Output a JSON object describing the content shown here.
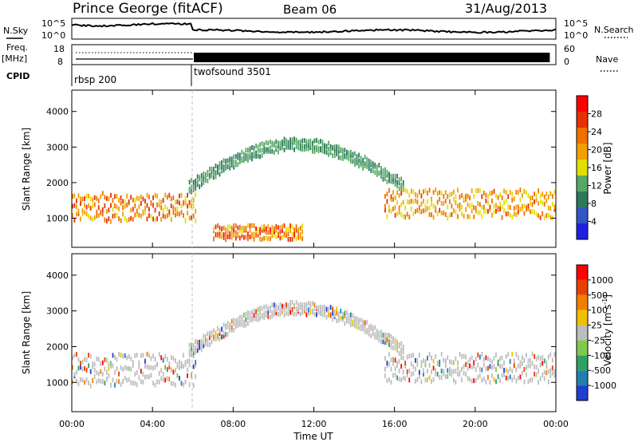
{
  "header": {
    "title": "Prince George (fitACF)",
    "beam": "Beam 06",
    "date": "31/Aug/2013"
  },
  "status_panel": {
    "left_top": "N.Sky",
    "left_bottom_label": "Freq.",
    "left_bottom_unit": "[MHz]",
    "cpid_label": "CPID",
    "right_top": "N.Search",
    "right_bottom": "Nave",
    "nsky_ticks": [
      "10^5",
      "10^0"
    ],
    "freq_ticks": [
      "18",
      "8"
    ],
    "nave_ticks": [
      "60",
      "0"
    ],
    "nsearch_ticks": [
      "10^5",
      "10^0"
    ],
    "cpid_segments": [
      {
        "label": "rbsp 200",
        "start_hour": 0,
        "end_hour": 6.0
      },
      {
        "label": "twofsound 3501",
        "start_hour": 6.0,
        "end_hour": 24
      }
    ]
  },
  "chart_data": [
    {
      "type": "heatmap",
      "quantity": "Power",
      "ylabel": "Slant Range [km]",
      "ylim": [
        180,
        4600
      ],
      "yticks": [
        1000,
        2000,
        3000,
        4000
      ],
      "xlim": [
        0,
        24
      ],
      "xticks": [
        "00:00",
        "04:00",
        "08:00",
        "12:00",
        "16:00",
        "20:00",
        "00:00"
      ],
      "colorbar": {
        "label": "Power [dB]",
        "range": [
          0,
          32
        ],
        "ticks": [
          "4",
          "8",
          "12",
          "16",
          "20",
          "24",
          "28"
        ],
        "colors": [
          "#1f1fe0",
          "#3056c8",
          "#2c7a5a",
          "#56a866",
          "#e0e000",
          "#f0a000",
          "#f07000",
          "#e83000",
          "#ff0000"
        ]
      },
      "echo_bands": [
        {
          "name": "near-range ground scatter",
          "start_hour": 0.0,
          "end_hour": 6.2,
          "range_min_km": 900,
          "range_max_km": 1700,
          "peak_db": 28
        },
        {
          "name": "daytime arc",
          "start_hour": 5.8,
          "end_hour": 16.5,
          "range_min_km": 1700,
          "range_max_km": 3450,
          "peak_db": 14
        },
        {
          "name": "morning low band",
          "start_hour": 7.0,
          "end_hour": 11.5,
          "range_min_km": 400,
          "range_max_km": 800,
          "peak_db": 30
        },
        {
          "name": "evening band",
          "start_hour": 15.5,
          "end_hour": 24.0,
          "range_min_km": 1000,
          "range_max_km": 1800,
          "peak_db": 26
        }
      ]
    },
    {
      "type": "heatmap",
      "quantity": "Velocity",
      "ylabel": "Slant Range [km]",
      "ylim": [
        180,
        4600
      ],
      "yticks": [
        1000,
        2000,
        3000,
        4000
      ],
      "xlim": [
        0,
        24
      ],
      "xlabel": "Time UT",
      "xticks": [
        "00:00",
        "04:00",
        "08:00",
        "12:00",
        "16:00",
        "20:00",
        "00:00"
      ],
      "colorbar": {
        "label": "Velocity [m s^-1]",
        "ticks": [
          "1000",
          "500",
          "100",
          "25",
          "-25",
          "-100",
          "-500",
          "-1000"
        ],
        "colors": [
          "#1f3fd0",
          "#2080b0",
          "#2fa060",
          "#80c850",
          "#bdbdbd",
          "#f0c000",
          "#f08000",
          "#e84000",
          "#ff0000"
        ]
      },
      "echo_bands": [
        {
          "name": "near-range",
          "start_hour": 0.0,
          "end_hour": 6.2,
          "range_min_km": 900,
          "range_max_km": 1800,
          "dominant": "ground scatter"
        },
        {
          "name": "daytime arc",
          "start_hour": 5.8,
          "end_hour": 16.5,
          "range_min_km": 1700,
          "range_max_km": 3450,
          "dominant": "ground scatter"
        },
        {
          "name": "evening band",
          "start_hour": 15.5,
          "end_hour": 24.0,
          "range_min_km": 1000,
          "range_max_km": 1800,
          "dominant": "ground scatter"
        }
      ]
    }
  ]
}
